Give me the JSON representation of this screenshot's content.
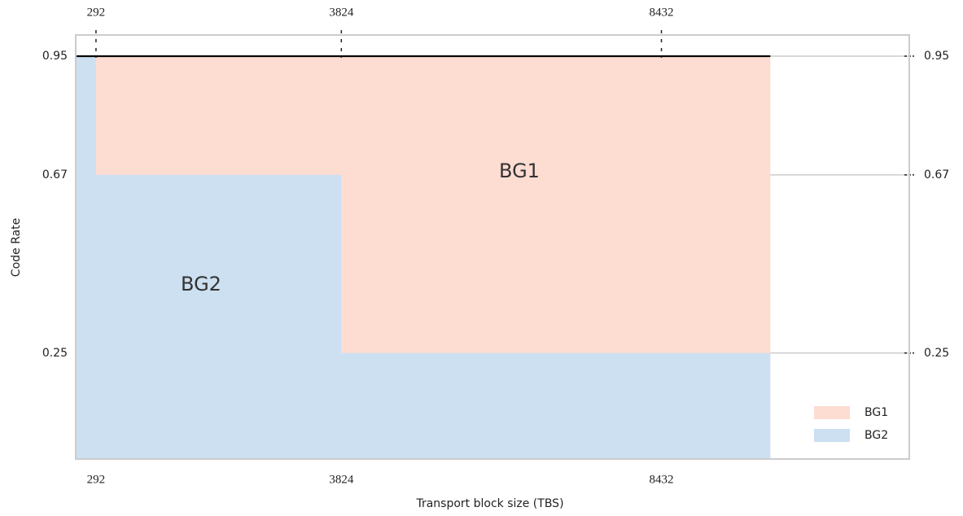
{
  "chart_data": {
    "type": "step-area",
    "x_label": "Transport block size (TBS)",
    "y_label": "Code Rate",
    "x": [
      0,
      292,
      3824,
      10000
    ],
    "series": [
      {
        "name": "BG1",
        "color": "#fddcd2",
        "values": [
          0.95,
          0.95,
          0.95,
          0.95
        ]
      },
      {
        "name": "BG2",
        "color": "#cce0f1",
        "values": [
          0.95,
          0.67,
          0.25,
          0.25
        ]
      }
    ],
    "max_rate": 0.95,
    "annotations": [
      "BG1",
      "BG2"
    ],
    "xlim": [
      0,
      12000
    ],
    "ylim": [
      0,
      1
    ],
    "xticks": [
      292,
      3824,
      8432
    ],
    "yticks": [
      0.25,
      0.67,
      0.95
    ],
    "grid": true,
    "legend": "lower right"
  }
}
